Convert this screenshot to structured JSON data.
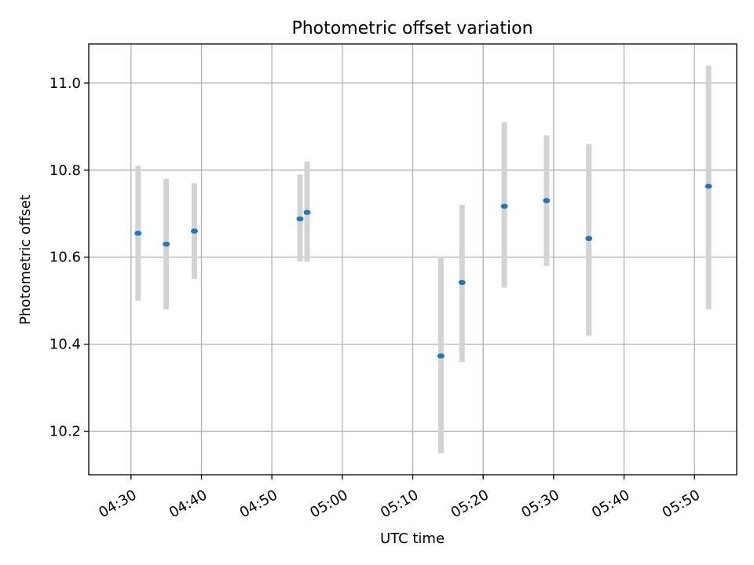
{
  "chart_data": {
    "type": "scatter",
    "title": "Photometric offset variation",
    "xlabel": "UTC time",
    "ylabel": "Photometric offset",
    "grid": true,
    "legend": "none",
    "xlim": [
      "04:24",
      "05:56"
    ],
    "ylim": [
      10.1,
      11.09
    ],
    "x_ticks": [
      "04:30",
      "04:40",
      "04:50",
      "05:00",
      "05:10",
      "05:20",
      "05:30",
      "05:40",
      "05:50"
    ],
    "y_ticks": [
      "10.2",
      "10.4",
      "10.6",
      "10.8",
      "11.0"
    ],
    "colors": {
      "point": "#1f77b4",
      "errorbar": "#d3d3d3",
      "grid": "#b0b0b0"
    },
    "series": [
      {
        "points": [
          {
            "x": "04:31",
            "y": 10.655,
            "ylow": 10.5,
            "yhigh": 10.81
          },
          {
            "x": "04:35",
            "y": 10.63,
            "ylow": 10.48,
            "yhigh": 10.78
          },
          {
            "x": "04:39",
            "y": 10.66,
            "ylow": 10.55,
            "yhigh": 10.77
          },
          {
            "x": "04:54",
            "y": 10.688,
            "ylow": 10.59,
            "yhigh": 10.79
          },
          {
            "x": "04:55",
            "y": 10.703,
            "ylow": 10.59,
            "yhigh": 10.82
          },
          {
            "x": "05:14",
            "y": 10.373,
            "ylow": 10.15,
            "yhigh": 10.6
          },
          {
            "x": "05:17",
            "y": 10.542,
            "ylow": 10.36,
            "yhigh": 10.72
          },
          {
            "x": "05:23",
            "y": 10.717,
            "ylow": 10.53,
            "yhigh": 10.91
          },
          {
            "x": "05:29",
            "y": 10.73,
            "ylow": 10.58,
            "yhigh": 10.88
          },
          {
            "x": "05:35",
            "y": 10.643,
            "ylow": 10.42,
            "yhigh": 10.86
          },
          {
            "x": "05:52",
            "y": 10.763,
            "ylow": 10.48,
            "yhigh": 11.04
          }
        ]
      }
    ]
  }
}
